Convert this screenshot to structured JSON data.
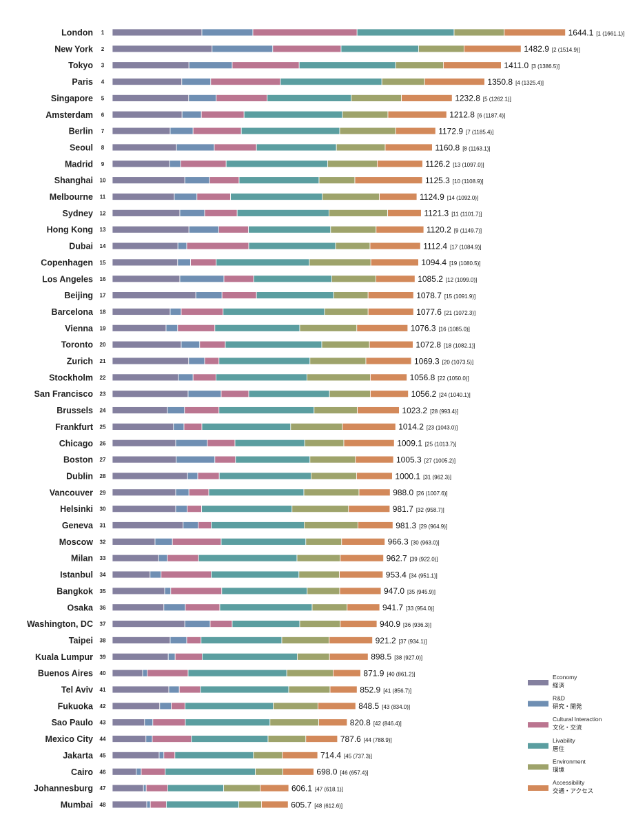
{
  "chart_data": {
    "type": "bar",
    "stacked": true,
    "orientation": "horizontal",
    "title": "",
    "xlabel": "",
    "ylabel": "",
    "grid": false,
    "legend_position": "bottom-right",
    "x_max": 1700,
    "series": [
      {
        "key": "economy",
        "name": "Economy",
        "name_jp": "経済",
        "color": "#84809f"
      },
      {
        "key": "rnd",
        "name": "R&D",
        "name_jp": "研究・開発",
        "color": "#6f8fb3"
      },
      {
        "key": "cultural",
        "name": "Cultural Interaction",
        "name_jp": "文化・交流",
        "color": "#bb7590"
      },
      {
        "key": "livability",
        "name": "Livability",
        "name_jp": "居住",
        "color": "#5b9ea0"
      },
      {
        "key": "environment",
        "name": "Environment",
        "name_jp": "環境",
        "color": "#9ea36b"
      },
      {
        "key": "accessibility",
        "name": "Accessibility",
        "name_jp": "交通・アクセス",
        "color": "#d3895a"
      }
    ],
    "cities": [
      {
        "name": "London",
        "rank": "1",
        "total": "1644.1",
        "prev": "[1 (1661.1)]",
        "values": [
          325,
          185,
          378,
          352,
          182,
          222
        ]
      },
      {
        "name": "New York",
        "rank": "2",
        "total": "1482.9",
        "prev": "[2 (1514.9)]",
        "values": [
          362,
          220,
          248,
          281,
          165,
          207
        ]
      },
      {
        "name": "Tokyo",
        "rank": "3",
        "total": "1411.0",
        "prev": "[3 (1386.5)]",
        "values": [
          278,
          157,
          243,
          350,
          173,
          210
        ]
      },
      {
        "name": "Paris",
        "rank": "4",
        "total": "1350.8",
        "prev": "[4 (1325.4)]",
        "values": [
          252,
          105,
          253,
          368,
          155,
          218
        ]
      },
      {
        "name": "Singapore",
        "rank": "5",
        "total": "1232.8",
        "prev": "[5 (1262.1)]",
        "values": [
          277,
          100,
          185,
          305,
          182,
          184
        ]
      },
      {
        "name": "Amsterdam",
        "rank": "6",
        "total": "1212.8",
        "prev": "[6 (1187.4)]",
        "values": [
          253,
          70,
          155,
          357,
          165,
          213
        ]
      },
      {
        "name": "Berlin",
        "rank": "7",
        "total": "1172.9",
        "prev": "[7 (1185.4)]",
        "values": [
          210,
          83,
          175,
          357,
          203,
          145
        ]
      },
      {
        "name": "Seoul",
        "rank": "8",
        "total": "1160.8",
        "prev": "[8 (1163.1)]",
        "values": [
          233,
          137,
          153,
          290,
          177,
          171
        ]
      },
      {
        "name": "Madrid",
        "rank": "9",
        "total": "1126.2",
        "prev": "[13 (1097.0)]",
        "values": [
          208,
          40,
          165,
          368,
          180,
          165
        ]
      },
      {
        "name": "Shanghai",
        "rank": "10",
        "total": "1125.3",
        "prev": "[10 (1108.9)]",
        "values": [
          263,
          90,
          107,
          290,
          130,
          245
        ]
      },
      {
        "name": "Melbourne",
        "rank": "11",
        "total": "1124.9",
        "prev": "[14 (1092.0)]",
        "values": [
          225,
          82,
          122,
          333,
          207,
          136
        ]
      },
      {
        "name": "Sydney",
        "rank": "12",
        "total": "1121.3",
        "prev": "[11 (1101.7)]",
        "values": [
          245,
          90,
          118,
          333,
          213,
          122
        ]
      },
      {
        "name": "Hong Kong",
        "rank": "13",
        "total": "1120.2",
        "prev": "[9 (1149.7)]",
        "values": [
          278,
          108,
          108,
          298,
          165,
          173
        ]
      },
      {
        "name": "Dubai",
        "rank": "14",
        "total": "1112.4",
        "prev": "[17 (1084.9)]",
        "values": [
          238,
          32,
          225,
          315,
          125,
          183
        ]
      },
      {
        "name": "Copenhagen",
        "rank": "15",
        "total": "1094.4",
        "prev": "[19 (1080.5)]",
        "values": [
          237,
          47,
          93,
          338,
          223,
          173
        ]
      },
      {
        "name": "Los Angeles",
        "rank": "16",
        "total": "1085.2",
        "prev": "[12 (1099.0)]",
        "values": [
          245,
          160,
          108,
          283,
          160,
          142
        ]
      },
      {
        "name": "Beijing",
        "rank": "17",
        "total": "1078.7",
        "prev": "[15 (1091.9)]",
        "values": [
          303,
          95,
          125,
          280,
          125,
          165
        ]
      },
      {
        "name": "Barcelona",
        "rank": "18",
        "total": "1077.6",
        "prev": "[21 (1072.3)]",
        "values": [
          210,
          40,
          152,
          368,
          158,
          165
        ]
      },
      {
        "name": "Vienna",
        "rank": "19",
        "total": "1076.3",
        "prev": "[16 (1085.0)]",
        "values": [
          195,
          42,
          135,
          308,
          207,
          185
        ]
      },
      {
        "name": "Toronto",
        "rank": "20",
        "total": "1072.8",
        "prev": "[18 (1082.1)]",
        "values": [
          250,
          67,
          93,
          350,
          173,
          158
        ]
      },
      {
        "name": "Zurich",
        "rank": "21",
        "total": "1069.3",
        "prev": "[20 (1073.5)]",
        "values": [
          277,
          58,
          52,
          330,
          203,
          165
        ]
      },
      {
        "name": "Stockholm",
        "rank": "22",
        "total": "1056.8",
        "prev": "[22 (1050.0)]",
        "values": [
          240,
          53,
          83,
          330,
          230,
          133
        ]
      },
      {
        "name": "San Francisco",
        "rank": "23",
        "total": "1056.2",
        "prev": "[24 (1040.1)]",
        "values": [
          275,
          120,
          100,
          293,
          148,
          138
        ]
      },
      {
        "name": "Brussels",
        "rank": "24",
        "total": "1023.2",
        "prev": "[28 (993.4)]",
        "values": [
          200,
          62,
          125,
          345,
          157,
          152
        ]
      },
      {
        "name": "Frankfurt",
        "rank": "25",
        "total": "1014.2",
        "prev": "[23 (1043.0)]",
        "values": [
          222,
          38,
          65,
          322,
          188,
          193
        ]
      },
      {
        "name": "Chicago",
        "rank": "26",
        "total": "1009.1",
        "prev": "[25 (1013.7)]",
        "values": [
          230,
          115,
          100,
          253,
          142,
          183
        ]
      },
      {
        "name": "Boston",
        "rank": "27",
        "total": "1005.3",
        "prev": "[27 (1005.2)]",
        "values": [
          232,
          140,
          75,
          270,
          165,
          138
        ]
      },
      {
        "name": "Dublin",
        "rank": "28",
        "total": "1000.1",
        "prev": "[31 (962.3)]",
        "values": [
          273,
          37,
          78,
          333,
          165,
          130
        ]
      },
      {
        "name": "Vancouver",
        "rank": "29",
        "total": "988.0",
        "prev": "[26 (1007.6)]",
        "values": [
          230,
          48,
          72,
          345,
          200,
          113
        ]
      },
      {
        "name": "Helsinki",
        "rank": "30",
        "total": "981.7",
        "prev": "[32 (958.7)]",
        "values": [
          230,
          42,
          52,
          328,
          205,
          150
        ]
      },
      {
        "name": "Geneva",
        "rank": "31",
        "total": "981.3",
        "prev": "[29 (964.9)]",
        "values": [
          257,
          55,
          47,
          337,
          195,
          127
        ]
      },
      {
        "name": "Moscow",
        "rank": "32",
        "total": "966.3",
        "prev": "[30 (963.0)]",
        "values": [
          155,
          63,
          177,
          307,
          130,
          157
        ]
      },
      {
        "name": "Milan",
        "rank": "33",
        "total": "962.7",
        "prev": "[39 (922.0)]",
        "values": [
          168,
          32,
          113,
          357,
          157,
          157
        ]
      },
      {
        "name": "Istanbul",
        "rank": "34",
        "total": "953.4",
        "prev": "[34 (951.1)]",
        "values": [
          137,
          40,
          182,
          318,
          147,
          158
        ]
      },
      {
        "name": "Bangkok",
        "rank": "35",
        "total": "947.0",
        "prev": "[35 (945.9)]",
        "values": [
          190,
          22,
          185,
          310,
          118,
          150
        ]
      },
      {
        "name": "Osaka",
        "rank": "36",
        "total": "941.7",
        "prev": "[33 (954.0)]",
        "values": [
          187,
          78,
          125,
          335,
          127,
          118
        ]
      },
      {
        "name": "Washington, DC",
        "rank": "37",
        "total": "940.9",
        "prev": "[36 (936.3)]",
        "values": [
          263,
          92,
          80,
          245,
          147,
          133
        ]
      },
      {
        "name": "Taipei",
        "rank": "38",
        "total": "921.2",
        "prev": "[37 (934.1)]",
        "values": [
          210,
          60,
          52,
          293,
          172,
          157
        ]
      },
      {
        "name": "Kuala Lumpur",
        "rank": "39",
        "total": "898.5",
        "prev": "[38 (927.0)]",
        "values": [
          203,
          25,
          98,
          345,
          117,
          140
        ]
      },
      {
        "name": "Buenos Aires",
        "rank": "40",
        "total": "871.9",
        "prev": "[40 (861.2)]",
        "values": [
          110,
          17,
          148,
          358,
          168,
          100
        ]
      },
      {
        "name": "Tel Aviv",
        "rank": "41",
        "total": "852.9",
        "prev": "[41 (856.7)]",
        "values": [
          205,
          38,
          77,
          320,
          150,
          98
        ]
      },
      {
        "name": "Fukuoka",
        "rank": "42",
        "total": "848.5",
        "prev": "[43 (834.0)]",
        "values": [
          172,
          42,
          50,
          320,
          162,
          137
        ]
      },
      {
        "name": "Sao Paulo",
        "rank": "43",
        "total": "820.8",
        "prev": "[42 (846.4)]",
        "values": [
          117,
          30,
          118,
          307,
          177,
          103
        ]
      },
      {
        "name": "Mexico City",
        "rank": "44",
        "total": "787.6",
        "prev": "[44 (788.9)]",
        "values": [
          122,
          23,
          142,
          278,
          137,
          115
        ]
      },
      {
        "name": "Jakarta",
        "rank": "45",
        "total": "714.4",
        "prev": "[45 (737.3)]",
        "values": [
          170,
          17,
          40,
          285,
          105,
          128
        ]
      },
      {
        "name": "Cairo",
        "rank": "46",
        "total": "698.0",
        "prev": "[46 (657.4)]",
        "values": [
          87,
          18,
          87,
          327,
          100,
          112
        ]
      },
      {
        "name": "Johannesburg",
        "rank": "47",
        "total": "606.1",
        "prev": "[47 (618.1)]",
        "values": [
          113,
          10,
          78,
          203,
          133,
          103
        ]
      },
      {
        "name": "Mumbai",
        "rank": "48",
        "total": "605.7",
        "prev": "[48 (612.6)]",
        "values": [
          125,
          13,
          58,
          263,
          82,
          97
        ]
      }
    ]
  }
}
